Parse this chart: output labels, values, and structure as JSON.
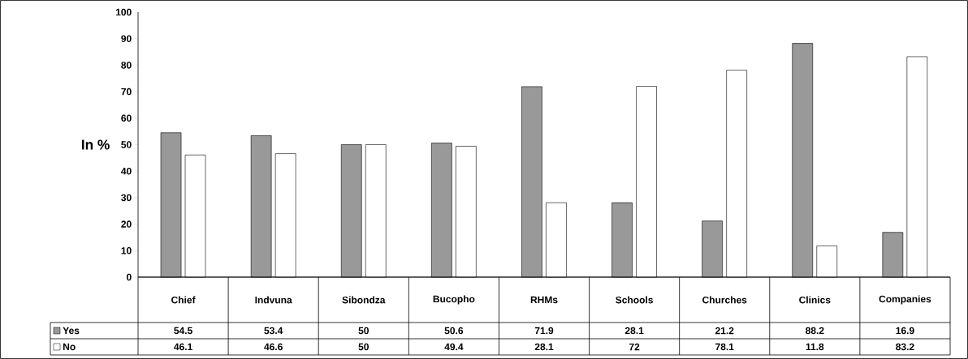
{
  "chart_data": {
    "type": "bar",
    "ylabel": "In %",
    "categories": [
      "Chief",
      "Indvuna",
      "Sibondza",
      "Bucopho",
      "RHMs",
      "Schools",
      "Churches",
      "Clinics",
      "Companies"
    ],
    "series": [
      {
        "name": "Yes",
        "color": "#999999",
        "values": [
          54.5,
          53.4,
          50,
          50.6,
          71.9,
          28.1,
          21.2,
          88.2,
          16.9
        ]
      },
      {
        "name": "No",
        "color": "#ffffff",
        "values": [
          46.1,
          46.6,
          50,
          49.4,
          28.1,
          72,
          78.1,
          11.8,
          83.2
        ]
      }
    ],
    "ylim": [
      0,
      100
    ],
    "yticks": [
      0,
      10,
      20,
      30,
      40,
      50,
      60,
      70,
      80,
      90,
      100
    ],
    "data_labels": true,
    "legend": "bottom"
  }
}
